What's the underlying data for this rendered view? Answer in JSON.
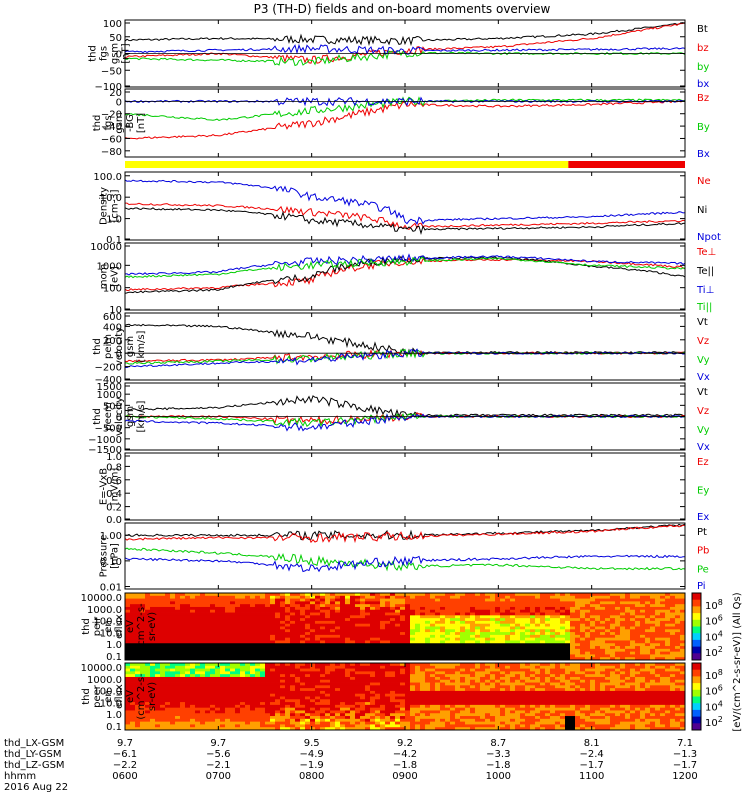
{
  "title": "P3 (TH-D) fields and on-board moments overview",
  "colors": {
    "black": "#000000",
    "red": "#ee0000",
    "green": "#00cc00",
    "blue": "#0000dd",
    "yellow": "#ffff00",
    "bar_red": "#ee0000"
  },
  "chart_data": [
    {
      "type": "line",
      "ylabel": [
        "thd",
        "fgs",
        "gsm",
        "[nT]"
      ],
      "ylim": [
        -100,
        100
      ],
      "yticks": [
        "100",
        "50",
        "0",
        "−50",
        "−100"
      ],
      "legend": [
        {
          "name": "Bt",
          "color": "#000000"
        },
        {
          "name": "bz",
          "color": "#ee0000"
        },
        {
          "name": "by",
          "color": "#00cc00"
        },
        {
          "name": "bx",
          "color": "#0000dd"
        }
      ],
      "series": [
        {
          "name": "Bt",
          "x": [
            "0600",
            "0700",
            "0800",
            "0900",
            "1000",
            "1100",
            "1200"
          ],
          "values": [
            40,
            45,
            42,
            38,
            45,
            58,
            90
          ]
        },
        {
          "name": "bz",
          "x": [
            "0600",
            "0700",
            "0800",
            "0900",
            "1000",
            "1100",
            "1200"
          ],
          "values": [
            -10,
            0,
            -20,
            10,
            20,
            45,
            90
          ]
        },
        {
          "name": "by",
          "x": [
            "0600",
            "0700",
            "0800",
            "0900",
            "1000",
            "1100",
            "1200"
          ],
          "values": [
            -15,
            -20,
            -25,
            2,
            0,
            0,
            0
          ]
        },
        {
          "name": "bx",
          "x": [
            "0600",
            "0700",
            "0800",
            "0900",
            "1000",
            "1100",
            "1200"
          ],
          "values": [
            5,
            10,
            15,
            8,
            10,
            12,
            15
          ]
        }
      ]
    },
    {
      "type": "line",
      "ylabel": [
        "thd",
        "fgs",
        "gsm",
        "-BG",
        "[nT]"
      ],
      "ylim": [
        -90,
        20
      ],
      "yticks": [
        "20",
        "0",
        "−20",
        "−40",
        "−60",
        "−80"
      ],
      "legend": [
        {
          "name": "Bz",
          "color": "#ee0000"
        },
        {
          "name": "By",
          "color": "#00cc00"
        },
        {
          "name": "Bx",
          "color": "#0000dd"
        }
      ],
      "series": [
        {
          "name": "Bz",
          "x": [
            "0600",
            "0700",
            "0800",
            "0900",
            "1000",
            "1100",
            "1200"
          ],
          "values": [
            -60,
            -55,
            -35,
            -5,
            -8,
            -5,
            0
          ]
        },
        {
          "name": "By",
          "x": [
            "0600",
            "0700",
            "0800",
            "0900",
            "1000",
            "1100",
            "1200"
          ],
          "values": [
            -20,
            -30,
            -15,
            0,
            2,
            2,
            2
          ]
        },
        {
          "name": "Bx",
          "x": [
            "0600",
            "0700",
            "0800",
            "0900",
            "1000",
            "1100",
            "1200"
          ],
          "values": [
            0,
            0,
            0,
            0,
            0,
            0,
            0
          ]
        }
      ]
    },
    {
      "type": "bar",
      "name": "mode bar",
      "segments": [
        {
          "from": "0600",
          "to": "1045",
          "color": "#ffff00"
        },
        {
          "from": "1045",
          "to": "1200",
          "color": "#ee0000"
        }
      ]
    },
    {
      "type": "line",
      "yscale": "log",
      "ylabel": [
        "Density",
        "[cm-3]"
      ],
      "ylim": [
        0.1,
        150
      ],
      "yticks": [
        "100.0",
        "10.0",
        "1.0",
        "0.1"
      ],
      "legend": [
        {
          "name": "Ne",
          "color": "#ee0000"
        },
        {
          "name": "Ni",
          "color": "#000000"
        },
        {
          "name": "Npot",
          "color": "#0000dd"
        }
      ],
      "series": [
        {
          "name": "Ne",
          "x": [
            "0600",
            "0700",
            "0800",
            "0900",
            "1000",
            "1100",
            "1200"
          ],
          "values": [
            5,
            4,
            2,
            0.4,
            0.5,
            0.6,
            0.8
          ]
        },
        {
          "name": "Ni",
          "x": [
            "0600",
            "0700",
            "0800",
            "0900",
            "1000",
            "1100",
            "1200"
          ],
          "values": [
            3,
            2.5,
            0.8,
            0.3,
            0.35,
            0.4,
            0.6
          ]
        },
        {
          "name": "Npot",
          "x": [
            "0600",
            "0700",
            "0800",
            "0900",
            "1000",
            "1100",
            "1200"
          ],
          "values": [
            60,
            50,
            10,
            0.8,
            1.0,
            1.2,
            2.0
          ]
        }
      ]
    },
    {
      "type": "line",
      "yscale": "log",
      "ylabel": [
        "mom",
        "[eV]"
      ],
      "ylim": [
        10,
        10000
      ],
      "yticks": [
        "10000",
        "1000",
        "100",
        "10"
      ],
      "legend": [
        {
          "name": "Te⊥",
          "color": "#ee0000"
        },
        {
          "name": "Te||",
          "color": "#000000"
        },
        {
          "name": "Ti⊥",
          "color": "#0000dd"
        },
        {
          "name": "Ti||",
          "color": "#00cc00"
        }
      ],
      "series": [
        {
          "name": "Te⊥",
          "x": [
            "0600",
            "0700",
            "0800",
            "0900",
            "1000",
            "1100",
            "1200"
          ],
          "values": [
            80,
            100,
            200,
            1500,
            1800,
            1500,
            800
          ]
        },
        {
          "name": "Te||",
          "x": [
            "0600",
            "0700",
            "0800",
            "0900",
            "1000",
            "1100",
            "1200"
          ],
          "values": [
            60,
            80,
            300,
            2000,
            2200,
            900,
            300
          ]
        },
        {
          "name": "Ti⊥",
          "x": [
            "0600",
            "0700",
            "0800",
            "0900",
            "1000",
            "1100",
            "1200"
          ],
          "values": [
            400,
            500,
            1500,
            2000,
            2500,
            1500,
            1200
          ]
        },
        {
          "name": "Ti||",
          "x": [
            "0600",
            "0700",
            "0800",
            "0900",
            "1000",
            "1100",
            "1200"
          ],
          "values": [
            300,
            400,
            1000,
            1500,
            2000,
            1000,
            700
          ]
        }
      ]
    },
    {
      "type": "line",
      "ylabel": [
        "thd",
        "peim",
        "velocity",
        "gsm",
        "[km/s]"
      ],
      "ylim": [
        -400,
        600
      ],
      "yticks": [
        "600",
        "400",
        "200",
        "0",
        "−200",
        "−400"
      ],
      "legend": [
        {
          "name": "Vt",
          "color": "#000000"
        },
        {
          "name": "Vz",
          "color": "#ee0000"
        },
        {
          "name": "Vy",
          "color": "#00cc00"
        },
        {
          "name": "Vx",
          "color": "#0000dd"
        }
      ],
      "series": [
        {
          "name": "Vt",
          "x": [
            "0600",
            "0700",
            "0800",
            "0900",
            "1000",
            "1100",
            "1200"
          ],
          "values": [
            420,
            400,
            250,
            20,
            10,
            10,
            10
          ]
        },
        {
          "name": "Vz",
          "x": [
            "0600",
            "0700",
            "0800",
            "0900",
            "1000",
            "1100",
            "1200"
          ],
          "values": [
            -120,
            -100,
            -50,
            0,
            0,
            0,
            0
          ]
        },
        {
          "name": "Vy",
          "x": [
            "0600",
            "0700",
            "0800",
            "0900",
            "1000",
            "1100",
            "1200"
          ],
          "values": [
            -150,
            -120,
            -80,
            0,
            0,
            0,
            0
          ]
        },
        {
          "name": "Vx",
          "x": [
            "0600",
            "0700",
            "0800",
            "0900",
            "1000",
            "1100",
            "1200"
          ],
          "values": [
            -200,
            -150,
            -100,
            0,
            0,
            0,
            0
          ]
        }
      ]
    },
    {
      "type": "line",
      "ylabel": [
        "thd",
        "peem",
        "velocity",
        "gsm",
        "[km/s]"
      ],
      "ylim": [
        -1500,
        1500
      ],
      "yticks": [
        "1500",
        "1000",
        "500",
        "0",
        "−500",
        "−1000",
        "−1500"
      ],
      "legend": [
        {
          "name": "Vt",
          "color": "#000000"
        },
        {
          "name": "Vz",
          "color": "#ee0000"
        },
        {
          "name": "Vy",
          "color": "#00cc00"
        },
        {
          "name": "Vx",
          "color": "#0000dd"
        }
      ],
      "series": [
        {
          "name": "Vt",
          "x": [
            "0600",
            "0700",
            "0800",
            "0900",
            "1000",
            "1100",
            "1200"
          ],
          "values": [
            300,
            400,
            800,
            50,
            60,
            60,
            60
          ]
        },
        {
          "name": "Vz",
          "x": [
            "0600",
            "0700",
            "0800",
            "0900",
            "1000",
            "1100",
            "1200"
          ],
          "values": [
            0,
            0,
            -200,
            0,
            0,
            0,
            0
          ]
        },
        {
          "name": "Vy",
          "x": [
            "0600",
            "0700",
            "0800",
            "0900",
            "1000",
            "1100",
            "1200"
          ],
          "values": [
            0,
            -100,
            -300,
            0,
            0,
            0,
            0
          ]
        },
        {
          "name": "Vx",
          "x": [
            "0600",
            "0700",
            "0800",
            "0900",
            "1000",
            "1100",
            "1200"
          ],
          "values": [
            -200,
            -300,
            -500,
            0,
            0,
            0,
            0
          ]
        }
      ]
    },
    {
      "type": "line",
      "ylabel": [
        "E=-VxB",
        "[mV/m]"
      ],
      "ylim": [
        0,
        1
      ],
      "yticks": [
        "1.0",
        "0.8",
        "0.6",
        "0.4",
        "0.2",
        "0.0"
      ],
      "legend": [
        {
          "name": "Ez",
          "color": "#ee0000"
        },
        {
          "name": "Ey",
          "color": "#00cc00"
        },
        {
          "name": "Ex",
          "color": "#0000dd"
        }
      ],
      "series": []
    },
    {
      "type": "line",
      "yscale": "log",
      "ylabel": [
        "Pressure",
        "[nPa]"
      ],
      "ylim": [
        0.008,
        3
      ],
      "yticks": [
        "1.00",
        "0.10",
        "0.01"
      ],
      "legend": [
        {
          "name": "Pt",
          "color": "#000000"
        },
        {
          "name": "Pb",
          "color": "#ee0000"
        },
        {
          "name": "Pe",
          "color": "#00cc00"
        },
        {
          "name": "Pi",
          "color": "#0000dd"
        }
      ],
      "series": [
        {
          "name": "Pt",
          "x": [
            "0600",
            "0700",
            "0800",
            "0900",
            "1000",
            "1100",
            "1200"
          ],
          "values": [
            1.0,
            1.0,
            1.0,
            1.0,
            1.2,
            1.5,
            2.5
          ]
        },
        {
          "name": "Pb",
          "x": [
            "0600",
            "0700",
            "0800",
            "0900",
            "1000",
            "1100",
            "1200"
          ],
          "values": [
            0.7,
            0.8,
            0.8,
            0.9,
            1.1,
            1.4,
            2.4
          ]
        },
        {
          "name": "Pe",
          "x": [
            "0600",
            "0700",
            "0800",
            "0900",
            "1000",
            "1100",
            "1200"
          ],
          "values": [
            0.3,
            0.2,
            0.1,
            0.06,
            0.07,
            0.05,
            0.05
          ]
        },
        {
          "name": "Pi",
          "x": [
            "0600",
            "0700",
            "0800",
            "0900",
            "1000",
            "1100",
            "1200"
          ],
          "values": [
            0.12,
            0.1,
            0.05,
            0.1,
            0.12,
            0.15,
            0.15
          ]
        }
      ]
    },
    {
      "type": "heatmap",
      "ylabel": [
        "thd",
        "peir",
        "en",
        "eflux",
        "eV",
        "(cm^2-s-",
        "sr-eV)"
      ],
      "yticks": [
        "10000.0",
        "1000.0",
        "100.0",
        "10.0",
        "1.0",
        "0.1"
      ],
      "colorbar_ticks": [
        "10^8",
        "10^6",
        "10^4",
        "10^2"
      ],
      "colorbar_label": "[eV/(cm^2-s-sr-eV)] (All Qs)"
    },
    {
      "type": "heatmap",
      "ylabel": [
        "thd",
        "peer",
        "en",
        "eflux",
        "eV",
        "(cm^2-s-",
        "sr-eV)"
      ],
      "yticks": [
        "10000.0",
        "1000.0",
        "100.0",
        "10.0",
        "1.0",
        "0.1"
      ],
      "colorbar_ticks": [
        "10^8",
        "10^6",
        "10^4",
        "10^2"
      ]
    }
  ],
  "xaxis": {
    "rows": [
      {
        "label": "thd_LX-GSM",
        "values": [
          "9.7",
          "9.7",
          "9.5",
          "9.2",
          "8.7",
          "8.1",
          "7.1"
        ]
      },
      {
        "label": "thd_LY-GSM",
        "values": [
          "−6.1",
          "−5.6",
          "−4.9",
          "−4.2",
          "−3.3",
          "−2.4",
          "−1.3"
        ]
      },
      {
        "label": "thd_LZ-GSM",
        "values": [
          "−2.2",
          "−2.1",
          "−1.9",
          "−1.8",
          "−1.8",
          "−1.7",
          "−1.7"
        ]
      },
      {
        "label": "hhmm",
        "values": [
          "0600",
          "0700",
          "0800",
          "0900",
          "1000",
          "1100",
          "1200"
        ]
      }
    ],
    "date": "2016 Aug 22"
  }
}
